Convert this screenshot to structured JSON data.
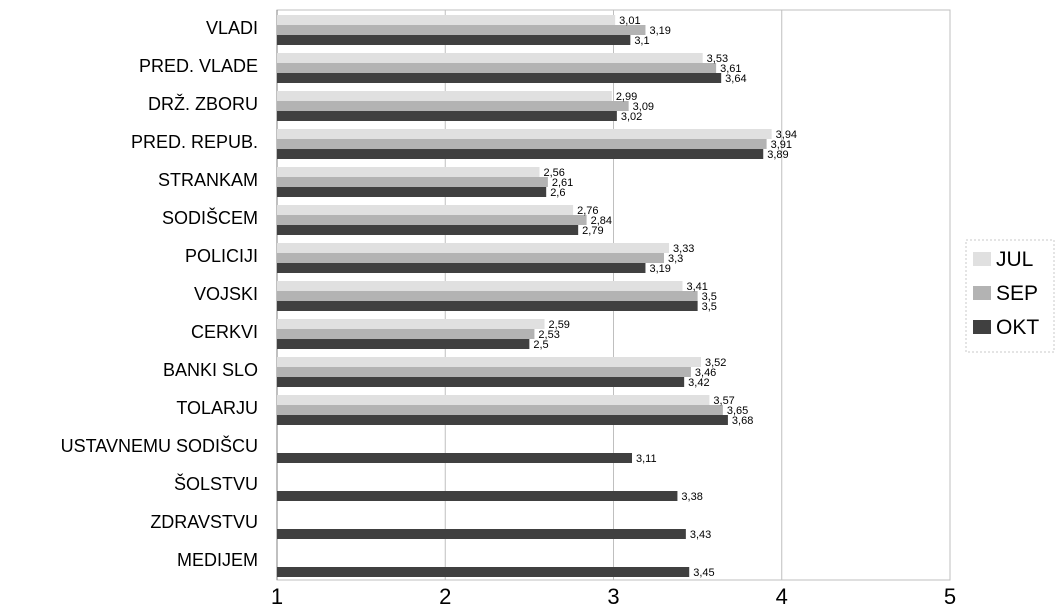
{
  "chart_data": {
    "type": "bar",
    "orientation": "horizontal",
    "categories": [
      "VLADI",
      "PRED. VLADE",
      "DRŽ. ZBORU",
      "PRED. REPUB.",
      "STRANKAM",
      "SODIŠCEM",
      "POLICIJI",
      "VOJSKI",
      "CERKVI",
      "BANKI SLO",
      "TOLARJU",
      "USTAVNEMU SODIŠCU",
      "ŠOLSTVU",
      "ZDRAVSTVU",
      "MEDIJEM"
    ],
    "series": [
      {
        "name": "JUL",
        "color": "#e0e0e0",
        "values": [
          3.01,
          3.53,
          2.99,
          3.94,
          2.56,
          2.76,
          3.33,
          3.41,
          2.59,
          3.52,
          3.57,
          null,
          null,
          null,
          null
        ],
        "labels": [
          "3,01",
          "3,53",
          "2,99",
          "3,94",
          "2,56",
          "2,76",
          "3,33",
          "3,41",
          "2,59",
          "3,52",
          "3,57",
          "",
          "",
          "",
          ""
        ]
      },
      {
        "name": "SEP",
        "color": "#b3b3b3",
        "values": [
          3.19,
          3.61,
          3.09,
          3.91,
          2.61,
          2.84,
          3.3,
          3.5,
          2.53,
          3.46,
          3.65,
          null,
          null,
          null,
          null
        ],
        "labels": [
          "3,19",
          "3,61",
          "3,09",
          "3,91",
          "2,61",
          "2,84",
          "3,3",
          "3,5",
          "2,53",
          "3,46",
          "3,65",
          "",
          "",
          "",
          ""
        ]
      },
      {
        "name": "OKT",
        "color": "#404040",
        "values": [
          3.1,
          3.64,
          3.02,
          3.89,
          2.6,
          2.79,
          3.19,
          3.5,
          2.5,
          3.42,
          3.68,
          3.11,
          3.38,
          3.43,
          3.45
        ],
        "labels": [
          "3,1",
          "3,64",
          "3,02",
          "3,89",
          "2,6",
          "2,79",
          "3,19",
          "3,5",
          "2,5",
          "3,42",
          "3,68",
          "3,11",
          "3,38",
          "3,43",
          "3,45"
        ]
      }
    ],
    "xlim": [
      1,
      5
    ],
    "xticks": [
      1,
      2,
      3,
      4,
      5
    ],
    "xtick_labels": [
      "1",
      "2",
      "3",
      "4",
      "5"
    ],
    "grid": true,
    "legend": "right"
  }
}
